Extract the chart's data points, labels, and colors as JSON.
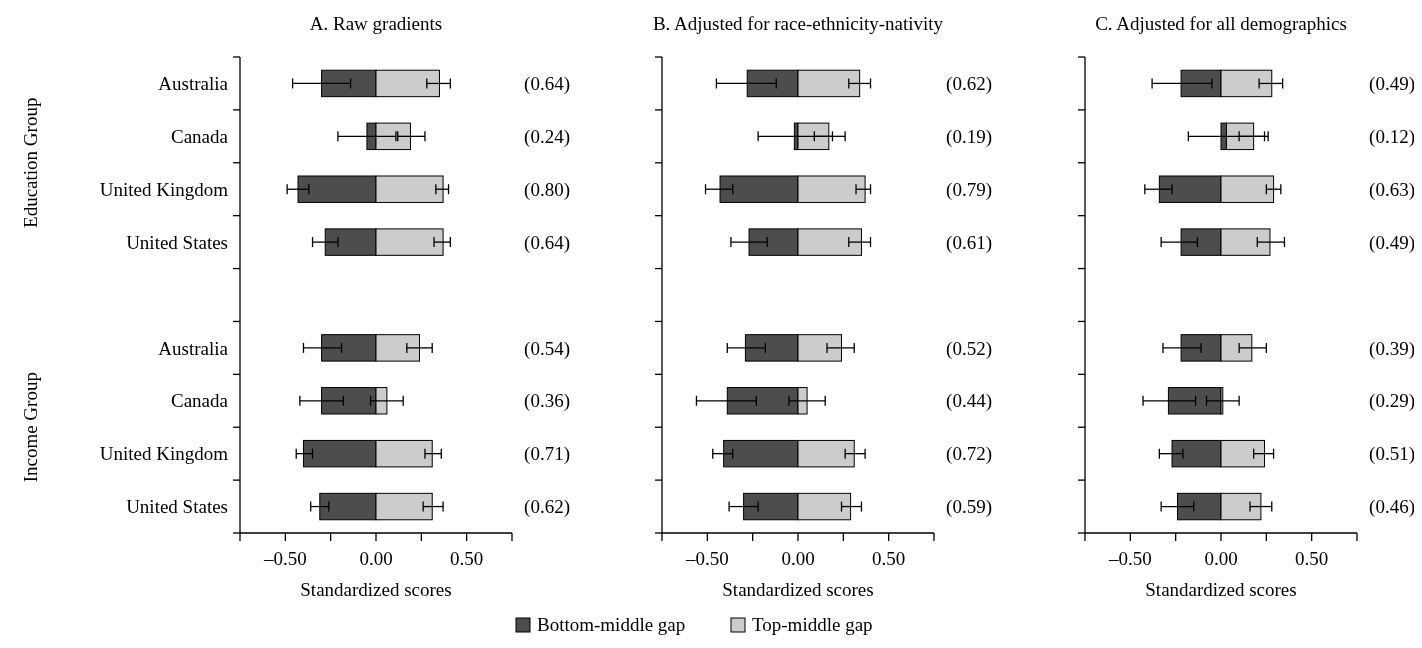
{
  "chart_data": [
    {
      "type": "bar",
      "orientation": "horizontal",
      "title": "A. Raw gradients",
      "xlabel": "Standardized scores",
      "categories": [
        "Australia",
        "Canada",
        "United Kingdom",
        "United States",
        null,
        "Australia",
        "Canada",
        "United Kingdom",
        "United States"
      ],
      "series": [
        {
          "name": "Bottom-middle gap",
          "color": "#4d4d4d",
          "values": [
            -0.3,
            -0.05,
            -0.43,
            -0.28,
            null,
            -0.3,
            -0.3,
            -0.4,
            -0.31
          ],
          "errors": [
            [
              -0.46,
              -0.14
            ],
            [
              -0.21,
              0.11
            ],
            [
              -0.49,
              -0.37
            ],
            [
              -0.35,
              -0.21
            ],
            null,
            [
              -0.4,
              -0.19
            ],
            [
              -0.42,
              -0.18
            ],
            [
              -0.44,
              -0.35
            ],
            [
              -0.36,
              -0.26
            ]
          ]
        },
        {
          "name": "Top-middle gap",
          "color": "#cccccc",
          "values": [
            0.35,
            0.19,
            0.37,
            0.37,
            null,
            0.24,
            0.06,
            0.31,
            0.31
          ],
          "errors": [
            [
              0.28,
              0.41
            ],
            [
              0.12,
              0.27
            ],
            [
              0.33,
              0.4
            ],
            [
              0.32,
              0.41
            ],
            null,
            [
              0.17,
              0.31
            ],
            [
              -0.03,
              0.15
            ],
            [
              0.27,
              0.36
            ],
            [
              0.26,
              0.37
            ]
          ]
        }
      ],
      "annotations": [
        "Education Group",
        "Income Group",
        "(0.64)",
        "(0.24)",
        "(0.80)",
        "(0.64)",
        "(0.54)",
        "(0.36)",
        "(0.71)",
        "(0.62)"
      ],
      "stacked": true,
      "xlim": [
        -0.75,
        0.75
      ],
      "xticks": [
        {
          "value": -0.75,
          "label": null
        },
        {
          "value": -0.5,
          "label": "–0.50"
        },
        {
          "value": -0.25,
          "label": null
        },
        {
          "value": 0,
          "label": "0.00"
        },
        {
          "value": 0.25,
          "label": null
        },
        {
          "value": 0.5,
          "label": "0.50"
        },
        {
          "value": 0.75,
          "label": null
        }
      ],
      "legend": "bottom",
      "grid": false
    },
    {
      "type": "bar",
      "orientation": "horizontal",
      "title": "B. Adjusted for race-ethnicity-nativity",
      "xlabel": "Standardized scores",
      "tick_labels": "x",
      "categories": [
        null,
        null,
        null,
        null,
        null,
        null,
        null,
        null,
        null
      ],
      "series": [
        {
          "color": "#4d4d4d",
          "values": [
            -0.28,
            -0.02,
            -0.43,
            -0.27,
            null,
            -0.29,
            -0.39,
            -0.41,
            -0.3
          ],
          "errors": [
            [
              -0.45,
              -0.12
            ],
            [
              -0.22,
              0.19
            ],
            [
              -0.51,
              -0.36
            ],
            [
              -0.37,
              -0.17
            ],
            null,
            [
              -0.39,
              -0.18
            ],
            [
              -0.56,
              -0.23
            ],
            [
              -0.47,
              -0.36
            ],
            [
              -0.38,
              -0.22
            ]
          ]
        },
        {
          "color": "#cccccc",
          "values": [
            0.34,
            0.17,
            0.37,
            0.35,
            null,
            0.24,
            0.05,
            0.31,
            0.29
          ],
          "errors": [
            [
              0.28,
              0.4
            ],
            [
              0.09,
              0.26
            ],
            [
              0.32,
              0.4
            ],
            [
              0.28,
              0.4
            ],
            null,
            [
              0.16,
              0.31
            ],
            [
              -0.05,
              0.15
            ],
            [
              0.26,
              0.37
            ],
            [
              0.24,
              0.35
            ]
          ]
        }
      ],
      "annotations": [
        "(0.62)",
        "(0.19)",
        "(0.79)",
        "(0.61)",
        "(0.52)",
        "(0.44)",
        "(0.72)",
        "(0.59)"
      ],
      "stacked": true,
      "xlim": [
        -0.75,
        0.75
      ],
      "xticks": [
        {
          "value": -0.75,
          "label": null
        },
        {
          "value": -0.5,
          "label": "–0.50"
        },
        {
          "value": -0.25,
          "label": null
        },
        {
          "value": 0,
          "label": "0.00"
        },
        {
          "value": 0.25,
          "label": null
        },
        {
          "value": 0.5,
          "label": "0.50"
        },
        {
          "value": 0.75,
          "label": null
        }
      ],
      "grid": false
    },
    {
      "type": "bar",
      "orientation": "horizontal",
      "title": "C. Adjusted for all demographics",
      "xlabel": "Standardized scores",
      "tick_labels": "x",
      "categories": [
        null,
        null,
        null,
        null,
        null,
        null,
        null,
        null,
        null
      ],
      "series": [
        {
          "color": "#4d4d4d",
          "values": [
            -0.22,
            0.03,
            -0.34,
            -0.22,
            null,
            -0.22,
            -0.29,
            -0.27,
            -0.24
          ],
          "errors": [
            [
              -0.38,
              -0.05
            ],
            [
              -0.18,
              0.24
            ],
            [
              -0.42,
              -0.27
            ],
            [
              -0.33,
              -0.13
            ],
            null,
            [
              -0.32,
              -0.11
            ],
            [
              -0.43,
              -0.14
            ],
            [
              -0.34,
              -0.21
            ],
            [
              -0.33,
              -0.15
            ]
          ]
        },
        {
          "color": "#cccccc",
          "values": [
            0.28,
            0.15,
            0.29,
            0.27,
            null,
            0.17,
            0.01,
            0.24,
            0.22
          ],
          "errors": [
            [
              0.21,
              0.34
            ],
            [
              0.1,
              0.26
            ],
            [
              0.25,
              0.33
            ],
            [
              0.2,
              0.35
            ],
            null,
            [
              0.1,
              0.25
            ],
            [
              -0.08,
              0.1
            ],
            [
              0.18,
              0.29
            ],
            [
              0.16,
              0.28
            ]
          ]
        }
      ],
      "annotations": [
        "(0.49)",
        "(0.12)",
        "(0.63)",
        "(0.49)",
        "(0.39)",
        "(0.29)",
        "(0.51)",
        "(0.46)"
      ],
      "stacked": true,
      "xlim": [
        -0.75,
        0.75
      ],
      "xticks": [
        {
          "value": -0.75,
          "label": null
        },
        {
          "value": -0.5,
          "label": "–0.50"
        },
        {
          "value": -0.25,
          "label": null
        },
        {
          "value": 0,
          "label": "0.00"
        },
        {
          "value": 0.25,
          "label": null
        },
        {
          "value": 0.5,
          "label": "0.50"
        },
        {
          "value": 0.75,
          "label": null
        }
      ],
      "grid": false
    }
  ]
}
